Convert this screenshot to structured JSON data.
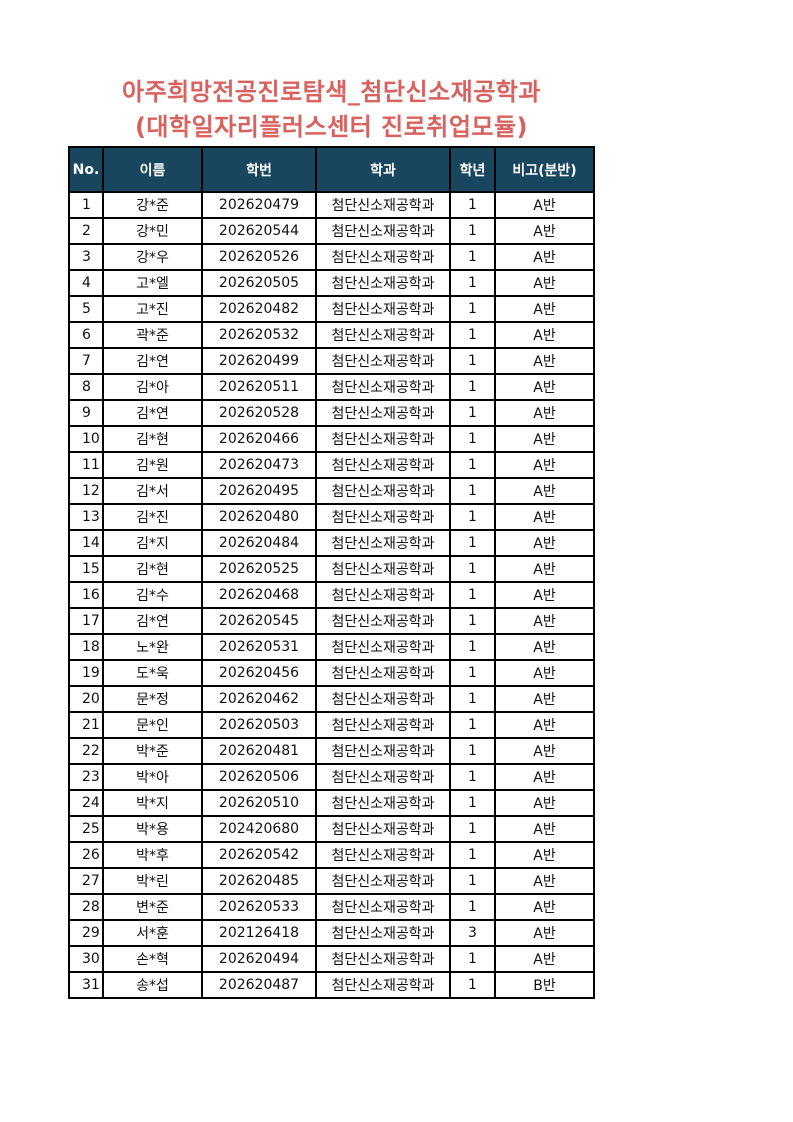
{
  "title_line1": "아주희망전공진로탐색_첨단신소재공학과",
  "title_line2": "(대학일자리플러스센터 진로취업모듈)",
  "colors": {
    "title": "#d9625f",
    "header_bg": "#17465e"
  },
  "table": {
    "headers": [
      "No.",
      "이름",
      "학번",
      "학과",
      "학년",
      "비고(분반)"
    ],
    "rows": [
      [
        "1",
        "강*준",
        "202620479",
        "첨단신소재공학과",
        "1",
        "A반"
      ],
      [
        "2",
        "강*민",
        "202620544",
        "첨단신소재공학과",
        "1",
        "A반"
      ],
      [
        "3",
        "강*우",
        "202620526",
        "첨단신소재공학과",
        "1",
        "A반"
      ],
      [
        "4",
        "고*엘",
        "202620505",
        "첨단신소재공학과",
        "1",
        "A반"
      ],
      [
        "5",
        "고*진",
        "202620482",
        "첨단신소재공학과",
        "1",
        "A반"
      ],
      [
        "6",
        "곽*준",
        "202620532",
        "첨단신소재공학과",
        "1",
        "A반"
      ],
      [
        "7",
        "김*연",
        "202620499",
        "첨단신소재공학과",
        "1",
        "A반"
      ],
      [
        "8",
        "김*아",
        "202620511",
        "첨단신소재공학과",
        "1",
        "A반"
      ],
      [
        "9",
        "김*연",
        "202620528",
        "첨단신소재공학과",
        "1",
        "A반"
      ],
      [
        "10",
        "김*현",
        "202620466",
        "첨단신소재공학과",
        "1",
        "A반"
      ],
      [
        "11",
        "김*원",
        "202620473",
        "첨단신소재공학과",
        "1",
        "A반"
      ],
      [
        "12",
        "김*서",
        "202620495",
        "첨단신소재공학과",
        "1",
        "A반"
      ],
      [
        "13",
        "김*진",
        "202620480",
        "첨단신소재공학과",
        "1",
        "A반"
      ],
      [
        "14",
        "김*지",
        "202620484",
        "첨단신소재공학과",
        "1",
        "A반"
      ],
      [
        "15",
        "김*현",
        "202620525",
        "첨단신소재공학과",
        "1",
        "A반"
      ],
      [
        "16",
        "김*수",
        "202620468",
        "첨단신소재공학과",
        "1",
        "A반"
      ],
      [
        "17",
        "김*연",
        "202620545",
        "첨단신소재공학과",
        "1",
        "A반"
      ],
      [
        "18",
        "노*완",
        "202620531",
        "첨단신소재공학과",
        "1",
        "A반"
      ],
      [
        "19",
        "도*욱",
        "202620456",
        "첨단신소재공학과",
        "1",
        "A반"
      ],
      [
        "20",
        "문*정",
        "202620462",
        "첨단신소재공학과",
        "1",
        "A반"
      ],
      [
        "21",
        "문*인",
        "202620503",
        "첨단신소재공학과",
        "1",
        "A반"
      ],
      [
        "22",
        "박*준",
        "202620481",
        "첨단신소재공학과",
        "1",
        "A반"
      ],
      [
        "23",
        "박*아",
        "202620506",
        "첨단신소재공학과",
        "1",
        "A반"
      ],
      [
        "24",
        "박*지",
        "202620510",
        "첨단신소재공학과",
        "1",
        "A반"
      ],
      [
        "25",
        "박*용",
        "202420680",
        "첨단신소재공학과",
        "1",
        "A반"
      ],
      [
        "26",
        "박*후",
        "202620542",
        "첨단신소재공학과",
        "1",
        "A반"
      ],
      [
        "27",
        "박*린",
        "202620485",
        "첨단신소재공학과",
        "1",
        "A반"
      ],
      [
        "28",
        "변*준",
        "202620533",
        "첨단신소재공학과",
        "1",
        "A반"
      ],
      [
        "29",
        "서*훈",
        "202126418",
        "첨단신소재공학과",
        "3",
        "A반"
      ],
      [
        "30",
        "손*혁",
        "202620494",
        "첨단신소재공학과",
        "1",
        "A반"
      ],
      [
        "31",
        "송*섭",
        "202620487",
        "첨단신소재공학과",
        "1",
        "B반"
      ]
    ]
  }
}
